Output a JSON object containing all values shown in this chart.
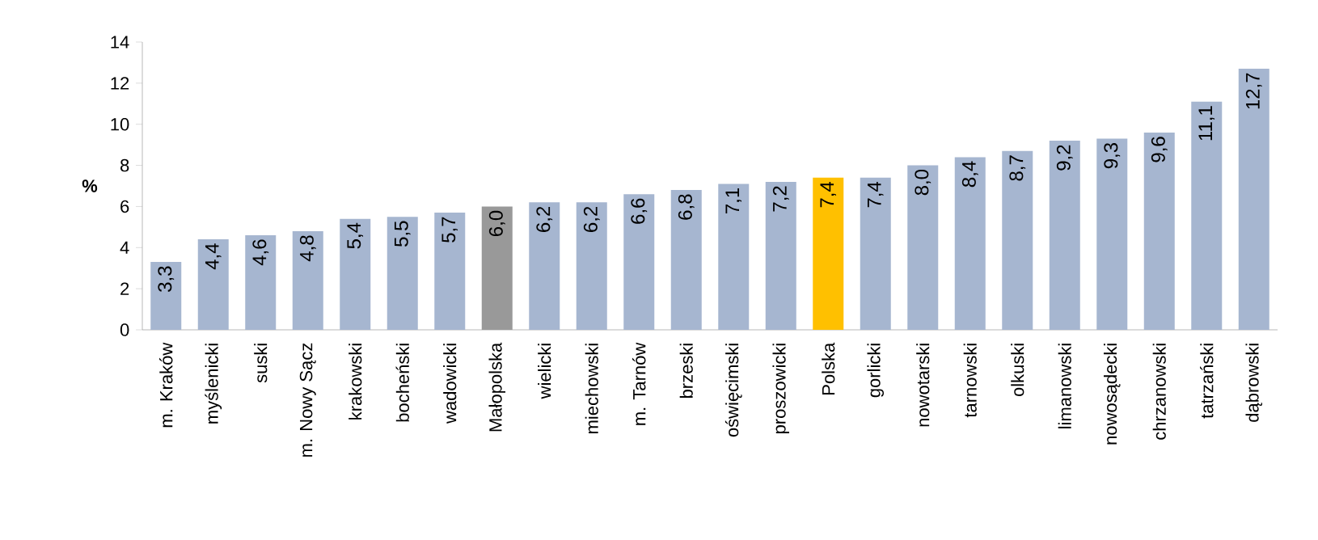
{
  "chart_data": {
    "type": "bar",
    "ylabel": "%",
    "categories": [
      "m. Kraków",
      "myślenicki",
      "suski",
      "m. Nowy Sącz",
      "krakowski",
      "bocheński",
      "wadowicki",
      "Małopolska",
      "wielicki",
      "miechowski",
      "m. Tarnów",
      "brzeski",
      "oświęcimski",
      "proszowicki",
      "Polska",
      "gorlicki",
      "nowotarski",
      "tarnowski",
      "olkuski",
      "limanowski",
      "nowosądecki",
      "chrzanowski",
      "tatrzański",
      "dąbrowski"
    ],
    "values": [
      3.3,
      4.4,
      4.6,
      4.8,
      5.4,
      5.5,
      5.7,
      6.0,
      6.2,
      6.2,
      6.6,
      6.8,
      7.1,
      7.2,
      7.4,
      7.4,
      8.0,
      8.4,
      8.7,
      9.2,
      9.3,
      9.6,
      11.1,
      12.7
    ],
    "value_labels": [
      "3,3",
      "4,4",
      "4,6",
      "4,8",
      "5,4",
      "5,5",
      "5,7",
      "6,0",
      "6,2",
      "6,2",
      "6,6",
      "6,8",
      "7,1",
      "7,2",
      "7,4",
      "7,4",
      "8,0",
      "8,4",
      "8,7",
      "9,2",
      "9,3",
      "9,6",
      "11,1",
      "12,7"
    ],
    "colors": [
      "#a6b6d0",
      "#a6b6d0",
      "#a6b6d0",
      "#a6b6d0",
      "#a6b6d0",
      "#a6b6d0",
      "#a6b6d0",
      "#999999",
      "#a6b6d0",
      "#a6b6d0",
      "#a6b6d0",
      "#a6b6d0",
      "#a6b6d0",
      "#a6b6d0",
      "#ffc000",
      "#a6b6d0",
      "#a6b6d0",
      "#a6b6d0",
      "#a6b6d0",
      "#a6b6d0",
      "#a6b6d0",
      "#a6b6d0",
      "#a6b6d0",
      "#a6b6d0"
    ],
    "ylim": [
      0,
      14
    ],
    "yticks": [
      0,
      2,
      4,
      6,
      8,
      10,
      12,
      14
    ],
    "grid": false
  }
}
